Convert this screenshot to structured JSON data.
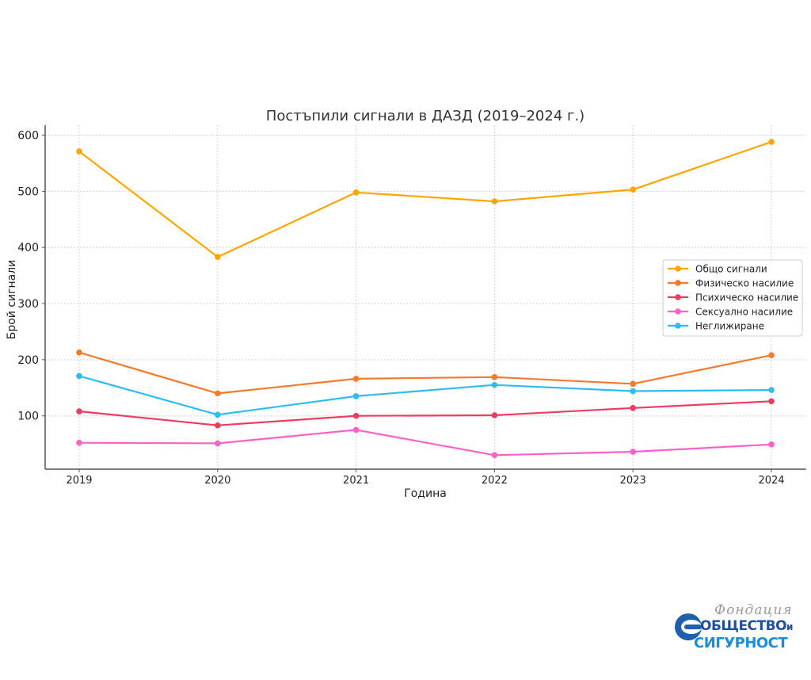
{
  "chart_data": {
    "type": "line",
    "title": "Постъпили сигнали в ДАЗД (2019–2024 г.)",
    "xlabel": "Година",
    "ylabel": "Брой сигнали",
    "x": [
      2019,
      2020,
      2021,
      2022,
      2023,
      2024
    ],
    "x_tick_labels": [
      "2019",
      "2020",
      "2021",
      "2022",
      "2023",
      "2024"
    ],
    "ylim": [
      0,
      615
    ],
    "y_ticks": [
      100,
      200,
      300,
      400,
      500,
      600
    ],
    "y_tick_labels": [
      "100",
      "200",
      "300",
      "400",
      "500",
      "600"
    ],
    "grid": true,
    "legend_position": "center-right",
    "series": [
      {
        "name": "Общо сигнали",
        "color": "#ffa500",
        "values": [
          571,
          383,
          498,
          482,
          503,
          588
        ]
      },
      {
        "name": "Физическо насилие",
        "color": "#f47a2d",
        "values": [
          213,
          140,
          166,
          169,
          157,
          208
        ]
      },
      {
        "name": "Психическо насилие",
        "color": "#f03a5f",
        "values": [
          108,
          83,
          100,
          101,
          114,
          126
        ]
      },
      {
        "name": "Сексуално насилие",
        "color": "#ff5fc8",
        "values": [
          52,
          51,
          75,
          30,
          36,
          49
        ]
      },
      {
        "name": "Неглижиране",
        "color": "#2ebcf5",
        "values": [
          171,
          102,
          135,
          155,
          144,
          146
        ]
      }
    ]
  },
  "logo": {
    "script_text": "Фондация",
    "line1_text": "ОБЩЕСТВО",
    "line1_suffix": "и",
    "line2_text": "СИГУРНОСТ"
  }
}
